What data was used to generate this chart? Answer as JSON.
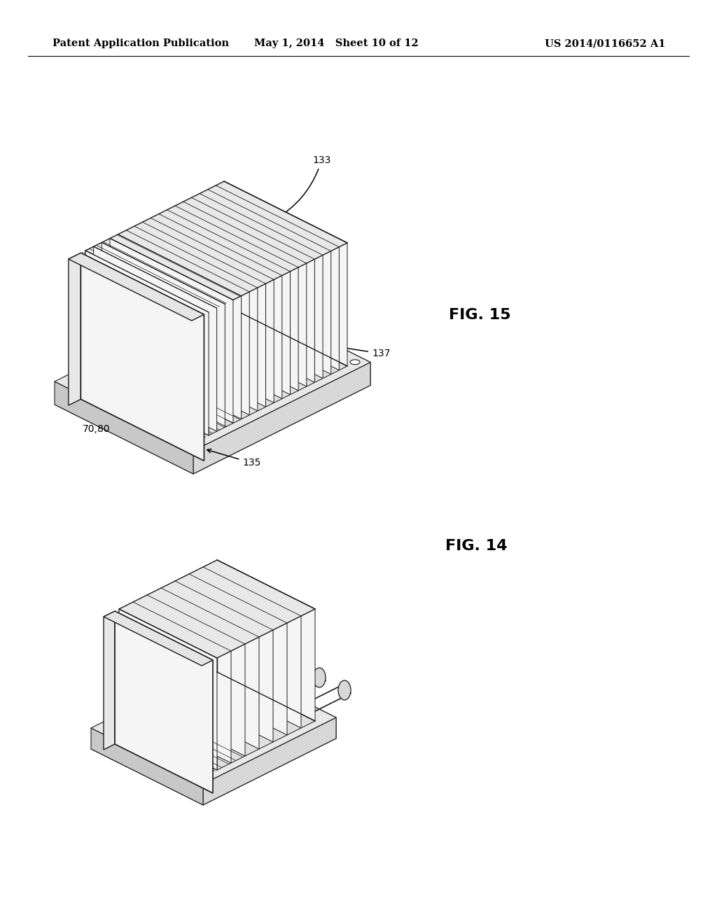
{
  "background_color": "#ffffff",
  "header_left": "Patent Application Publication",
  "header_center": "May 1, 2014   Sheet 10 of 12",
  "header_right": "US 2014/0116652 A1",
  "header_fontsize": 10.5,
  "fig15_label": "FIG. 15",
  "fig14_label": "FIG. 14",
  "label_fontsize": 16,
  "ref_fontsize": 10,
  "line_color": "#1a1a1a",
  "line_width": 1.0
}
